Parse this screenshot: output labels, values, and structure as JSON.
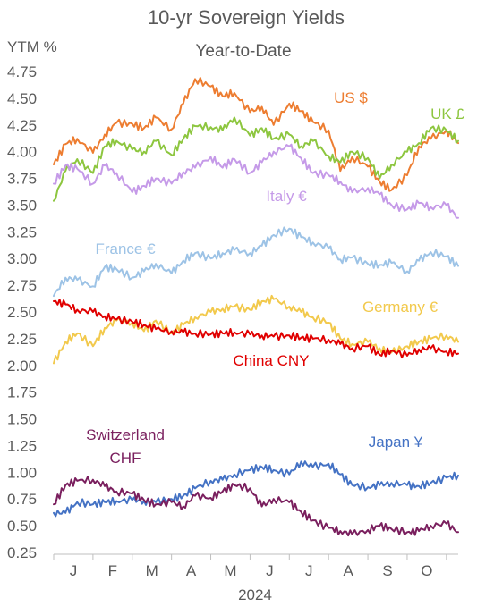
{
  "chart_data": {
    "type": "line",
    "title": "10-yr Sovereign Yields",
    "subtitle": "Year-to-Date",
    "ylabel": "YTM %",
    "xlabel": "2024",
    "ylim": [
      0.25,
      4.75
    ],
    "yticks": [
      "4.75",
      "4.50",
      "4.25",
      "4.00",
      "3.75",
      "3.50",
      "3.25",
      "3.00",
      "2.75",
      "2.50",
      "2.25",
      "2.00",
      "1.75",
      "1.50",
      "1.25",
      "1.00",
      "0.75",
      "0.50",
      "0.25"
    ],
    "yticks_values": [
      4.75,
      4.5,
      4.25,
      4.0,
      3.75,
      3.5,
      3.25,
      3.0,
      2.75,
      2.5,
      2.25,
      2.0,
      1.75,
      1.5,
      1.25,
      1.0,
      0.75,
      0.5,
      0.25
    ],
    "xticks": [
      "J",
      "F",
      "M",
      "A",
      "M",
      "J",
      "J",
      "A",
      "S",
      "O"
    ],
    "xtick_months": [
      0.5,
      1.5,
      2.5,
      3.5,
      4.5,
      5.5,
      6.5,
      7.5,
      8.5,
      9.5
    ],
    "xlim_months": [
      0,
      10.3
    ],
    "grid": false,
    "series": [
      {
        "name": "US $",
        "color": "#ED7D31",
        "x": [
          0.0,
          0.3,
          0.6,
          1.0,
          1.3,
          1.6,
          2.0,
          2.3,
          2.6,
          3.0,
          3.3,
          3.6,
          4.0,
          4.3,
          4.6,
          5.0,
          5.3,
          5.6,
          6.0,
          6.3,
          6.6,
          7.0,
          7.3,
          7.6,
          8.0,
          8.3,
          8.6,
          9.0,
          9.3,
          9.6,
          10.0,
          10.3
        ],
        "values": [
          3.88,
          4.07,
          4.12,
          3.99,
          4.16,
          4.27,
          4.26,
          4.22,
          4.32,
          4.21,
          4.45,
          4.68,
          4.61,
          4.52,
          4.55,
          4.37,
          4.42,
          4.25,
          4.45,
          4.38,
          4.28,
          4.2,
          3.82,
          3.95,
          3.86,
          3.72,
          3.64,
          3.78,
          4.05,
          4.12,
          4.2,
          4.08
        ]
      },
      {
        "name": "UK £",
        "color": "#8DC63F",
        "x": [
          0.0,
          0.3,
          0.6,
          1.0,
          1.3,
          1.6,
          2.0,
          2.3,
          2.6,
          3.0,
          3.3,
          3.6,
          4.0,
          4.3,
          4.6,
          5.0,
          5.3,
          5.6,
          6.0,
          6.3,
          6.6,
          7.0,
          7.3,
          7.6,
          8.0,
          8.3,
          8.6,
          9.0,
          9.3,
          9.6,
          10.0,
          10.3
        ],
        "values": [
          3.54,
          3.82,
          3.93,
          3.8,
          4.05,
          4.1,
          4.02,
          4.0,
          4.1,
          3.97,
          4.12,
          4.24,
          4.23,
          4.2,
          4.32,
          4.15,
          4.22,
          4.12,
          4.16,
          4.05,
          4.1,
          3.96,
          3.9,
          4.0,
          3.94,
          3.75,
          3.88,
          4.0,
          4.08,
          4.22,
          4.2,
          4.1
        ]
      },
      {
        "name": "Italy €",
        "color": "#C59AE8",
        "x": [
          0.0,
          0.3,
          0.6,
          1.0,
          1.3,
          1.6,
          2.0,
          2.3,
          2.6,
          3.0,
          3.3,
          3.6,
          4.0,
          4.3,
          4.6,
          5.0,
          5.3,
          5.6,
          6.0,
          6.3,
          6.6,
          7.0,
          7.3,
          7.6,
          8.0,
          8.3,
          8.6,
          9.0,
          9.3,
          9.6,
          10.0,
          10.3
        ],
        "values": [
          3.7,
          3.87,
          3.84,
          3.7,
          3.87,
          3.8,
          3.62,
          3.68,
          3.75,
          3.7,
          3.81,
          3.85,
          3.95,
          3.85,
          3.93,
          3.8,
          3.9,
          4.0,
          4.05,
          3.94,
          3.8,
          3.78,
          3.72,
          3.62,
          3.66,
          3.6,
          3.5,
          3.46,
          3.52,
          3.48,
          3.5,
          3.38
        ]
      },
      {
        "name": "France €",
        "color": "#9DC3E6",
        "x": [
          0.0,
          0.3,
          0.6,
          1.0,
          1.3,
          1.6,
          2.0,
          2.3,
          2.6,
          3.0,
          3.3,
          3.6,
          4.0,
          4.3,
          4.6,
          5.0,
          5.3,
          5.6,
          6.0,
          6.3,
          6.6,
          7.0,
          7.3,
          7.6,
          8.0,
          8.3,
          8.6,
          9.0,
          9.3,
          9.6,
          10.0,
          10.3
        ],
        "values": [
          2.65,
          2.82,
          2.8,
          2.74,
          2.92,
          2.9,
          2.82,
          2.88,
          2.95,
          2.86,
          2.98,
          3.05,
          3.0,
          3.05,
          3.08,
          3.05,
          3.12,
          3.22,
          3.28,
          3.2,
          3.15,
          3.1,
          2.99,
          3.01,
          2.95,
          2.94,
          2.96,
          2.88,
          2.98,
          3.06,
          3.02,
          2.93
        ]
      },
      {
        "name": "Germany €",
        "color": "#F2C94C",
        "x": [
          0.0,
          0.3,
          0.6,
          1.0,
          1.3,
          1.6,
          2.0,
          2.3,
          2.6,
          3.0,
          3.3,
          3.6,
          4.0,
          4.3,
          4.6,
          5.0,
          5.3,
          5.6,
          6.0,
          6.3,
          6.6,
          7.0,
          7.3,
          7.6,
          8.0,
          8.3,
          8.6,
          9.0,
          9.3,
          9.6,
          10.0,
          10.3
        ],
        "values": [
          2.02,
          2.22,
          2.3,
          2.18,
          2.35,
          2.42,
          2.4,
          2.32,
          2.42,
          2.3,
          2.38,
          2.45,
          2.5,
          2.53,
          2.55,
          2.52,
          2.6,
          2.62,
          2.55,
          2.5,
          2.45,
          2.4,
          2.25,
          2.2,
          2.22,
          2.16,
          2.12,
          2.18,
          2.22,
          2.25,
          2.28,
          2.22
        ]
      },
      {
        "name": "China CNY",
        "color": "#E00000",
        "x": [
          0.0,
          0.3,
          0.6,
          1.0,
          1.3,
          1.6,
          2.0,
          2.3,
          2.6,
          3.0,
          3.3,
          3.6,
          4.0,
          4.3,
          4.6,
          5.0,
          5.3,
          5.6,
          6.0,
          6.3,
          6.6,
          7.0,
          7.3,
          7.6,
          8.0,
          8.3,
          8.6,
          9.0,
          9.3,
          9.6,
          10.0,
          10.3
        ],
        "values": [
          2.6,
          2.57,
          2.52,
          2.5,
          2.46,
          2.43,
          2.41,
          2.38,
          2.34,
          2.32,
          2.31,
          2.3,
          2.29,
          2.3,
          2.31,
          2.29,
          2.28,
          2.27,
          2.28,
          2.26,
          2.25,
          2.24,
          2.2,
          2.16,
          2.18,
          2.1,
          2.14,
          2.09,
          2.15,
          2.16,
          2.13,
          2.11
        ]
      },
      {
        "name": "Japan ¥",
        "color": "#4472C4",
        "x": [
          0.0,
          0.3,
          0.6,
          1.0,
          1.3,
          1.6,
          2.0,
          2.3,
          2.6,
          3.0,
          3.3,
          3.6,
          4.0,
          4.3,
          4.6,
          5.0,
          5.3,
          5.6,
          6.0,
          6.3,
          6.6,
          7.0,
          7.3,
          7.6,
          8.0,
          8.3,
          8.6,
          9.0,
          9.3,
          9.6,
          10.0,
          10.3
        ],
        "values": [
          0.62,
          0.62,
          0.72,
          0.7,
          0.72,
          0.73,
          0.74,
          0.73,
          0.72,
          0.75,
          0.78,
          0.85,
          0.92,
          0.93,
          0.98,
          1.02,
          1.05,
          1.02,
          0.98,
          1.1,
          1.05,
          1.08,
          0.98,
          0.88,
          0.86,
          0.88,
          0.9,
          0.88,
          0.87,
          0.9,
          0.95,
          0.97
        ]
      },
      {
        "name": "Switzerland CHF",
        "name_lines": [
          "Switzerland",
          "CHF"
        ],
        "color": "#7A1F5E",
        "x": [
          0.0,
          0.3,
          0.6,
          1.0,
          1.3,
          1.6,
          2.0,
          2.3,
          2.6,
          3.0,
          3.3,
          3.6,
          4.0,
          4.3,
          4.6,
          5.0,
          5.3,
          5.6,
          6.0,
          6.3,
          6.6,
          7.0,
          7.3,
          7.6,
          8.0,
          8.3,
          8.6,
          9.0,
          9.3,
          9.6,
          10.0,
          10.3
        ],
        "values": [
          0.7,
          0.88,
          0.92,
          0.93,
          0.87,
          0.82,
          0.8,
          0.74,
          0.7,
          0.72,
          0.68,
          0.78,
          0.76,
          0.82,
          0.88,
          0.85,
          0.68,
          0.75,
          0.72,
          0.63,
          0.55,
          0.48,
          0.45,
          0.42,
          0.46,
          0.5,
          0.47,
          0.44,
          0.45,
          0.5,
          0.52,
          0.44
        ]
      }
    ]
  }
}
